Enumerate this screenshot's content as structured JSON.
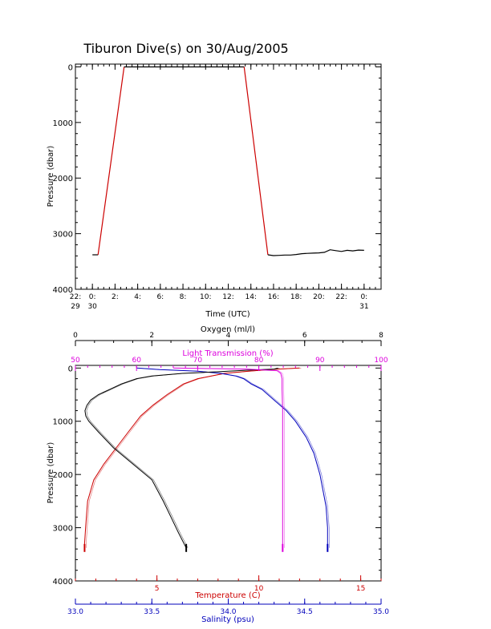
{
  "title": "Tiburon Dive(s) on 30/Aug/2005",
  "colors": {
    "axis": "#000000",
    "temperature": "#cc0000",
    "salinity": "#0000bb",
    "light": "#dd00dd",
    "oxygen": "#000000",
    "track_descent": "#cc0000",
    "track_bottom": "#000000"
  },
  "chart_data": [
    {
      "type": "line",
      "name_key": "dive-track",
      "xlabel": "Time (UTC)",
      "ylabel": "Pressure (dbar)",
      "x_unit": "hours after 00:00 UTC on 30/Aug/2005",
      "xlim": [
        -1.5,
        25.5
      ],
      "ylim": [
        4000,
        -50
      ],
      "x_ticks": [
        {
          "v": -1.5,
          "l1": "22:",
          "l2": "29"
        },
        {
          "v": 0,
          "l1": "0:",
          "l2": "30"
        },
        {
          "v": 2,
          "l1": "2:",
          "l2": ""
        },
        {
          "v": 4,
          "l1": "4:",
          "l2": ""
        },
        {
          "v": 6,
          "l1": "6:",
          "l2": ""
        },
        {
          "v": 8,
          "l1": "8:",
          "l2": ""
        },
        {
          "v": 10,
          "l1": "10:",
          "l2": ""
        },
        {
          "v": 12,
          "l1": "12:",
          "l2": ""
        },
        {
          "v": 14,
          "l1": "14:",
          "l2": ""
        },
        {
          "v": 16,
          "l1": "16:",
          "l2": ""
        },
        {
          "v": 18,
          "l1": "18:",
          "l2": ""
        },
        {
          "v": 20,
          "l1": "20:",
          "l2": ""
        },
        {
          "v": 22,
          "l1": "22:",
          "l2": ""
        },
        {
          "v": 24,
          "l1": "0:",
          "l2": "31"
        }
      ],
      "y_ticks": [
        0,
        1000,
        2000,
        3000,
        4000
      ],
      "series": [
        {
          "color_key": "track_bottom",
          "x": [
            0.0,
            0.5
          ],
          "y": [
            3380,
            3380
          ]
        },
        {
          "color_key": "track_descent",
          "x": [
            0.5,
            2.8
          ],
          "y": [
            3380,
            0
          ]
        },
        {
          "color_key": "track_bottom",
          "x": [
            2.8,
            13.4
          ],
          "y": [
            0,
            0
          ]
        },
        {
          "color_key": "track_descent",
          "x": [
            13.4,
            15.5
          ],
          "y": [
            0,
            3380
          ]
        },
        {
          "color_key": "track_bottom",
          "x": [
            15.5,
            16.0,
            16.5,
            17.0,
            17.5,
            18.0,
            18.5,
            19.0,
            19.5,
            20.0,
            20.5,
            21.0,
            21.5,
            22.0,
            22.5,
            23.0,
            23.5,
            24.0
          ],
          "y": [
            3380,
            3395,
            3390,
            3385,
            3385,
            3375,
            3360,
            3355,
            3350,
            3345,
            3335,
            3290,
            3305,
            3320,
            3300,
            3310,
            3295,
            3300
          ]
        }
      ]
    },
    {
      "type": "line",
      "name_key": "profiles",
      "ylabel": "Pressure (dbar)",
      "ylim": [
        4000,
        -50
      ],
      "y_ticks": [
        0,
        1000,
        2000,
        3000,
        4000
      ],
      "axes": {
        "oxygen": {
          "label": "Oxygen (ml/l)",
          "lim": [
            0,
            8
          ],
          "ticks": [
            0,
            2,
            4,
            6,
            8
          ],
          "minor": 0.5
        },
        "light": {
          "label": "Light Transmission (%)",
          "lim": [
            50,
            100
          ],
          "ticks": [
            50,
            60,
            70,
            80,
            90,
            100
          ],
          "minor": 2
        },
        "temperature": {
          "label": "Temperature (C)",
          "lim": [
            1,
            16
          ],
          "ticks": [
            5,
            10,
            15
          ],
          "minor": 1
        },
        "salinity": {
          "label": "Salinity (psu)",
          "lim": [
            33.0,
            35.0
          ],
          "ticks": [
            33.0,
            33.5,
            34.0,
            34.5,
            35.0
          ],
          "tick_labels": [
            "33.0",
            "33.5",
            "34.0",
            "34.5",
            "35.0"
          ],
          "minor": 0.1
        }
      },
      "series": [
        {
          "name": "Temperature",
          "axis": "temperature",
          "color_key": "temperature",
          "y": [
            0,
            30,
            60,
            100,
            200,
            300,
            500,
            700,
            900,
            1200,
            1500,
            1800,
            2100,
            2500,
            3000,
            3300,
            3380
          ],
          "x": [
            12.0,
            10.5,
            9.5,
            8.3,
            7.0,
            6.3,
            5.5,
            4.8,
            4.2,
            3.6,
            3.0,
            2.4,
            1.9,
            1.6,
            1.5,
            1.45,
            1.45
          ]
        },
        {
          "name": "Salinity",
          "axis": "salinity",
          "color_key": "salinity",
          "y": [
            0,
            30,
            60,
            100,
            150,
            200,
            300,
            400,
            600,
            800,
            1000,
            1300,
            1600,
            2000,
            2300,
            2600,
            3000,
            3380
          ],
          "x": [
            33.4,
            33.55,
            33.8,
            33.95,
            34.05,
            34.1,
            34.15,
            34.22,
            34.3,
            34.38,
            34.44,
            34.51,
            34.56,
            34.6,
            34.62,
            34.64,
            34.65,
            34.65
          ]
        },
        {
          "name": "Oxygen",
          "axis": "oxygen",
          "color_key": "oxygen",
          "y": [
            0,
            20,
            40,
            70,
            100,
            150,
            200,
            300,
            400,
            500,
            600,
            700,
            800,
            900,
            1000,
            1200,
            1500,
            1800,
            2100,
            2500,
            2800,
            3100,
            3380
          ],
          "x": [
            5.3,
            5.2,
            4.5,
            3.7,
            2.8,
            2.0,
            1.6,
            1.2,
            0.9,
            0.6,
            0.4,
            0.3,
            0.25,
            0.27,
            0.35,
            0.6,
            1.0,
            1.5,
            2.0,
            2.3,
            2.5,
            2.7,
            2.9
          ]
        },
        {
          "name": "Light Transmission",
          "axis": "light",
          "color_key": "light",
          "y": [
            0,
            20,
            50,
            100,
            200,
            400,
            800,
            1500,
            2500,
            3300,
            3380
          ],
          "x": [
            66.0,
            78.0,
            83.0,
            83.6,
            83.8,
            83.8,
            83.9,
            83.9,
            83.9,
            83.9,
            83.9
          ]
        }
      ]
    }
  ]
}
